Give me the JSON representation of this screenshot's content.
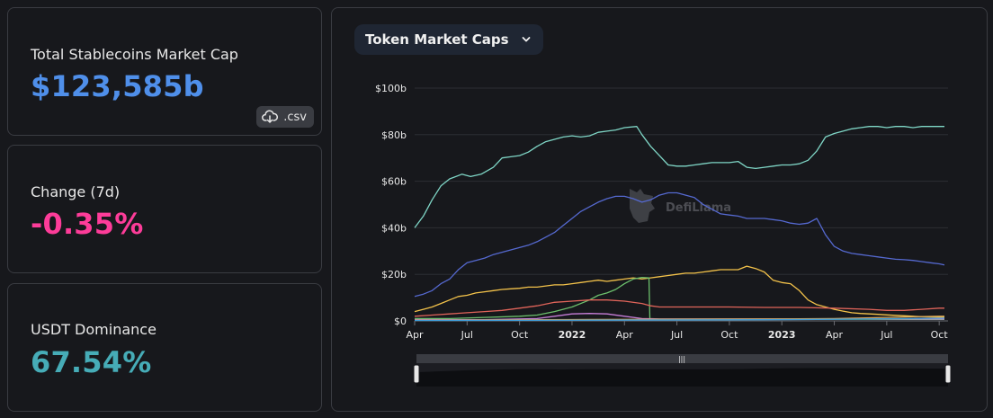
{
  "cards": [
    {
      "label": "Total Stablecoins Market Cap",
      "value": "$123,585b",
      "color": "#4f8fea"
    },
    {
      "label": "Change (7d)",
      "value": "-0.35%",
      "color": "#fd3c99"
    },
    {
      "label": "USDT Dominance",
      "value": "67.54%",
      "color": "#46acb7"
    }
  ],
  "csv_label": ".csv",
  "dropdown": {
    "label": "Token Market Caps",
    "icon": "chevron-down-icon"
  },
  "watermark": "DefiLlama",
  "chart_data": {
    "type": "line",
    "x_start": "2021-04",
    "x_end": "2023-10",
    "x_ticks": [
      {
        "label": "Apr",
        "t": 0,
        "bold": false
      },
      {
        "label": "Jul",
        "t": 3,
        "bold": false
      },
      {
        "label": "Oct",
        "t": 6,
        "bold": false
      },
      {
        "label": "2022",
        "t": 9,
        "bold": true
      },
      {
        "label": "Apr",
        "t": 12,
        "bold": false
      },
      {
        "label": "Jul",
        "t": 15,
        "bold": false
      },
      {
        "label": "Oct",
        "t": 18,
        "bold": false
      },
      {
        "label": "2023",
        "t": 21,
        "bold": true
      },
      {
        "label": "Apr",
        "t": 24,
        "bold": false
      },
      {
        "label": "Jul",
        "t": 27,
        "bold": false
      },
      {
        "label": "Oct",
        "t": 30,
        "bold": false
      }
    ],
    "y_ticks": [
      {
        "label": "$0",
        "v": 0
      },
      {
        "label": "$20b",
        "v": 20
      },
      {
        "label": "$40b",
        "v": 40
      },
      {
        "label": "$60b",
        "v": 60
      },
      {
        "label": "$80b",
        "v": 80
      },
      {
        "label": "$100b",
        "v": 100
      }
    ],
    "ylim": [
      0,
      100
    ],
    "xlim": [
      0,
      30.3
    ],
    "grid": true,
    "series": [
      {
        "color": "#7fd6c6",
        "points": [
          [
            0,
            40
          ],
          [
            0.5,
            45
          ],
          [
            1,
            52
          ],
          [
            1.5,
            58
          ],
          [
            2,
            61
          ],
          [
            2.7,
            63
          ],
          [
            3.2,
            62
          ],
          [
            3.8,
            63
          ],
          [
            4.5,
            66
          ],
          [
            5,
            70
          ],
          [
            5.5,
            70.5
          ],
          [
            6,
            71
          ],
          [
            6.5,
            72.5
          ],
          [
            7,
            75
          ],
          [
            7.5,
            77
          ],
          [
            8,
            78
          ],
          [
            8.5,
            79
          ],
          [
            9,
            79.5
          ],
          [
            9.5,
            79
          ],
          [
            10,
            79.5
          ],
          [
            10.5,
            81
          ],
          [
            11,
            81.5
          ],
          [
            11.5,
            82
          ],
          [
            12,
            83
          ],
          [
            12.7,
            83.5
          ],
          [
            13,
            80
          ],
          [
            13.5,
            75
          ],
          [
            14,
            71
          ],
          [
            14.5,
            67
          ],
          [
            15,
            66.5
          ],
          [
            15.5,
            66.5
          ],
          [
            16,
            67
          ],
          [
            16.5,
            67.5
          ],
          [
            17,
            68
          ],
          [
            17.5,
            68
          ],
          [
            18,
            68
          ],
          [
            18.5,
            68.5
          ],
          [
            19,
            66
          ],
          [
            19.5,
            65.5
          ],
          [
            20,
            66
          ],
          [
            20.5,
            66.5
          ],
          [
            21,
            67
          ],
          [
            21.5,
            67
          ],
          [
            22,
            67.5
          ],
          [
            22.5,
            69
          ],
          [
            23,
            73
          ],
          [
            23.5,
            79
          ],
          [
            24,
            80.5
          ],
          [
            24.5,
            81.5
          ],
          [
            25,
            82.5
          ],
          [
            25.5,
            83
          ],
          [
            26,
            83.5
          ],
          [
            26.5,
            83.5
          ],
          [
            27,
            83
          ],
          [
            27.5,
            83.5
          ],
          [
            28,
            83.5
          ],
          [
            28.5,
            83
          ],
          [
            29,
            83.5
          ],
          [
            29.5,
            83.5
          ],
          [
            30,
            83.5
          ],
          [
            30.3,
            83.5
          ]
        ]
      },
      {
        "color": "#5569d0",
        "points": [
          [
            0,
            10.5
          ],
          [
            0.5,
            11.5
          ],
          [
            1,
            13
          ],
          [
            1.5,
            16
          ],
          [
            2,
            18
          ],
          [
            2.5,
            22
          ],
          [
            3,
            25
          ],
          [
            3.5,
            26
          ],
          [
            4,
            27
          ],
          [
            4.5,
            28.5
          ],
          [
            5,
            29.5
          ],
          [
            5.5,
            30.5
          ],
          [
            6,
            31.5
          ],
          [
            6.5,
            32.5
          ],
          [
            7,
            34
          ],
          [
            7.5,
            36
          ],
          [
            8,
            38
          ],
          [
            8.5,
            41
          ],
          [
            9,
            44
          ],
          [
            9.5,
            47
          ],
          [
            10,
            49
          ],
          [
            10.5,
            51
          ],
          [
            11,
            52.5
          ],
          [
            11.5,
            53.5
          ],
          [
            12,
            53.5
          ],
          [
            12.5,
            52.5
          ],
          [
            13,
            51
          ],
          [
            13.5,
            52
          ],
          [
            14,
            54
          ],
          [
            14.5,
            55
          ],
          [
            15,
            55
          ],
          [
            15.5,
            54
          ],
          [
            16,
            53
          ],
          [
            16.5,
            50
          ],
          [
            17,
            48
          ],
          [
            17.5,
            46
          ],
          [
            18,
            45.5
          ],
          [
            18.5,
            45
          ],
          [
            19,
            44
          ],
          [
            19.5,
            44
          ],
          [
            20,
            44
          ],
          [
            20.5,
            43.5
          ],
          [
            21,
            43
          ],
          [
            21.5,
            42
          ],
          [
            22,
            41.5
          ],
          [
            22.5,
            42
          ],
          [
            23,
            44
          ],
          [
            23.5,
            37
          ],
          [
            24,
            32
          ],
          [
            24.5,
            30
          ],
          [
            25,
            29
          ],
          [
            25.5,
            28.5
          ],
          [
            26,
            28
          ],
          [
            26.5,
            27.5
          ],
          [
            27,
            27
          ],
          [
            27.5,
            26.5
          ],
          [
            28,
            26.3
          ],
          [
            28.5,
            26
          ],
          [
            29,
            25.5
          ],
          [
            29.5,
            25
          ],
          [
            30,
            24.5
          ],
          [
            30.3,
            24
          ]
        ]
      },
      {
        "color": "#f3c24a",
        "points": [
          [
            0,
            4
          ],
          [
            0.5,
            5
          ],
          [
            1,
            6
          ],
          [
            1.5,
            7.5
          ],
          [
            2,
            9
          ],
          [
            2.5,
            10.5
          ],
          [
            3,
            11
          ],
          [
            3.5,
            12
          ],
          [
            4,
            12.5
          ],
          [
            4.5,
            13
          ],
          [
            5,
            13.5
          ],
          [
            5.5,
            13.8
          ],
          [
            6,
            14
          ],
          [
            6.5,
            14.5
          ],
          [
            7,
            14.5
          ],
          [
            7.5,
            15
          ],
          [
            8,
            15.5
          ],
          [
            8.5,
            15.5
          ],
          [
            9,
            16
          ],
          [
            9.5,
            16.5
          ],
          [
            10,
            17
          ],
          [
            10.5,
            17.5
          ],
          [
            11,
            17
          ],
          [
            11.5,
            17.5
          ],
          [
            12,
            18
          ],
          [
            12.5,
            18.5
          ],
          [
            13,
            18
          ],
          [
            13.5,
            18.5
          ],
          [
            14,
            19
          ],
          [
            14.5,
            19.5
          ],
          [
            15,
            20
          ],
          [
            15.5,
            20.5
          ],
          [
            16,
            20.5
          ],
          [
            16.5,
            21
          ],
          [
            17,
            21.5
          ],
          [
            17.5,
            22
          ],
          [
            18,
            22
          ],
          [
            18.5,
            22
          ],
          [
            19,
            23.5
          ],
          [
            19.5,
            22.5
          ],
          [
            20,
            21
          ],
          [
            20.5,
            17.5
          ],
          [
            21,
            16.5
          ],
          [
            21.5,
            16
          ],
          [
            22,
            13
          ],
          [
            22.5,
            9
          ],
          [
            23,
            7
          ],
          [
            23.5,
            6
          ],
          [
            24,
            5
          ],
          [
            24.5,
            4.2
          ],
          [
            25,
            3.5
          ],
          [
            25.5,
            3.2
          ],
          [
            26,
            3
          ],
          [
            26.5,
            2.8
          ],
          [
            27,
            2.6
          ],
          [
            27.5,
            2.4
          ],
          [
            28,
            2.2
          ],
          [
            28.5,
            2
          ],
          [
            29,
            1.8
          ],
          [
            29.5,
            1.7
          ],
          [
            30,
            1.6
          ],
          [
            30.3,
            1.5
          ]
        ]
      },
      {
        "color": "#6cbf6c",
        "points": [
          [
            0,
            1
          ],
          [
            2,
            1
          ],
          [
            4,
            1.5
          ],
          [
            6,
            2
          ],
          [
            7,
            2.5
          ],
          [
            8,
            4
          ],
          [
            9,
            6
          ],
          [
            10,
            9
          ],
          [
            10.5,
            11
          ],
          [
            11,
            12
          ],
          [
            11.5,
            13.5
          ],
          [
            12,
            16
          ],
          [
            12.5,
            18
          ],
          [
            13,
            18.7
          ],
          [
            13.4,
            18.5
          ],
          [
            13.45,
            1
          ],
          [
            14,
            0.8
          ],
          [
            20,
            0.8
          ],
          [
            30.3,
            0.6
          ]
        ]
      },
      {
        "color": "#e0645a",
        "points": [
          [
            0,
            2
          ],
          [
            1,
            2.5
          ],
          [
            2,
            3
          ],
          [
            3,
            3.5
          ],
          [
            4,
            4
          ],
          [
            5,
            4.5
          ],
          [
            6,
            5.5
          ],
          [
            7,
            6.5
          ],
          [
            8,
            8
          ],
          [
            9,
            8.5
          ],
          [
            10,
            9
          ],
          [
            11,
            9
          ],
          [
            12,
            8.5
          ],
          [
            13,
            7.5
          ],
          [
            13.5,
            6.5
          ],
          [
            14,
            6
          ],
          [
            16,
            6
          ],
          [
            18,
            6
          ],
          [
            20,
            5.8
          ],
          [
            22,
            5.8
          ],
          [
            24,
            5.5
          ],
          [
            26,
            5
          ],
          [
            27,
            4.5
          ],
          [
            28,
            4.5
          ],
          [
            29,
            5
          ],
          [
            30,
            5.5
          ],
          [
            30.3,
            5.5
          ]
        ]
      },
      {
        "color": "#c77ed8",
        "points": [
          [
            0,
            0.5
          ],
          [
            4,
            0.5
          ],
          [
            7,
            1
          ],
          [
            8,
            2
          ],
          [
            9,
            3
          ],
          [
            10,
            3.2
          ],
          [
            11,
            3
          ],
          [
            12,
            2
          ],
          [
            13,
            1
          ],
          [
            14,
            0.8
          ],
          [
            20,
            0.8
          ],
          [
            30.3,
            0.8
          ]
        ]
      },
      {
        "color": "#d9a85c",
        "points": [
          [
            0,
            0.3
          ],
          [
            10,
            0.6
          ],
          [
            20,
            0.8
          ],
          [
            24,
            1
          ],
          [
            27,
            1.5
          ],
          [
            30,
            2
          ],
          [
            30.3,
            2
          ]
        ]
      },
      {
        "color": "#3f9bd6",
        "points": [
          [
            0,
            0.2
          ],
          [
            10,
            0.3
          ],
          [
            20,
            0.5
          ],
          [
            24,
            0.7
          ],
          [
            28,
            1
          ],
          [
            30.3,
            1.2
          ]
        ]
      }
    ]
  }
}
